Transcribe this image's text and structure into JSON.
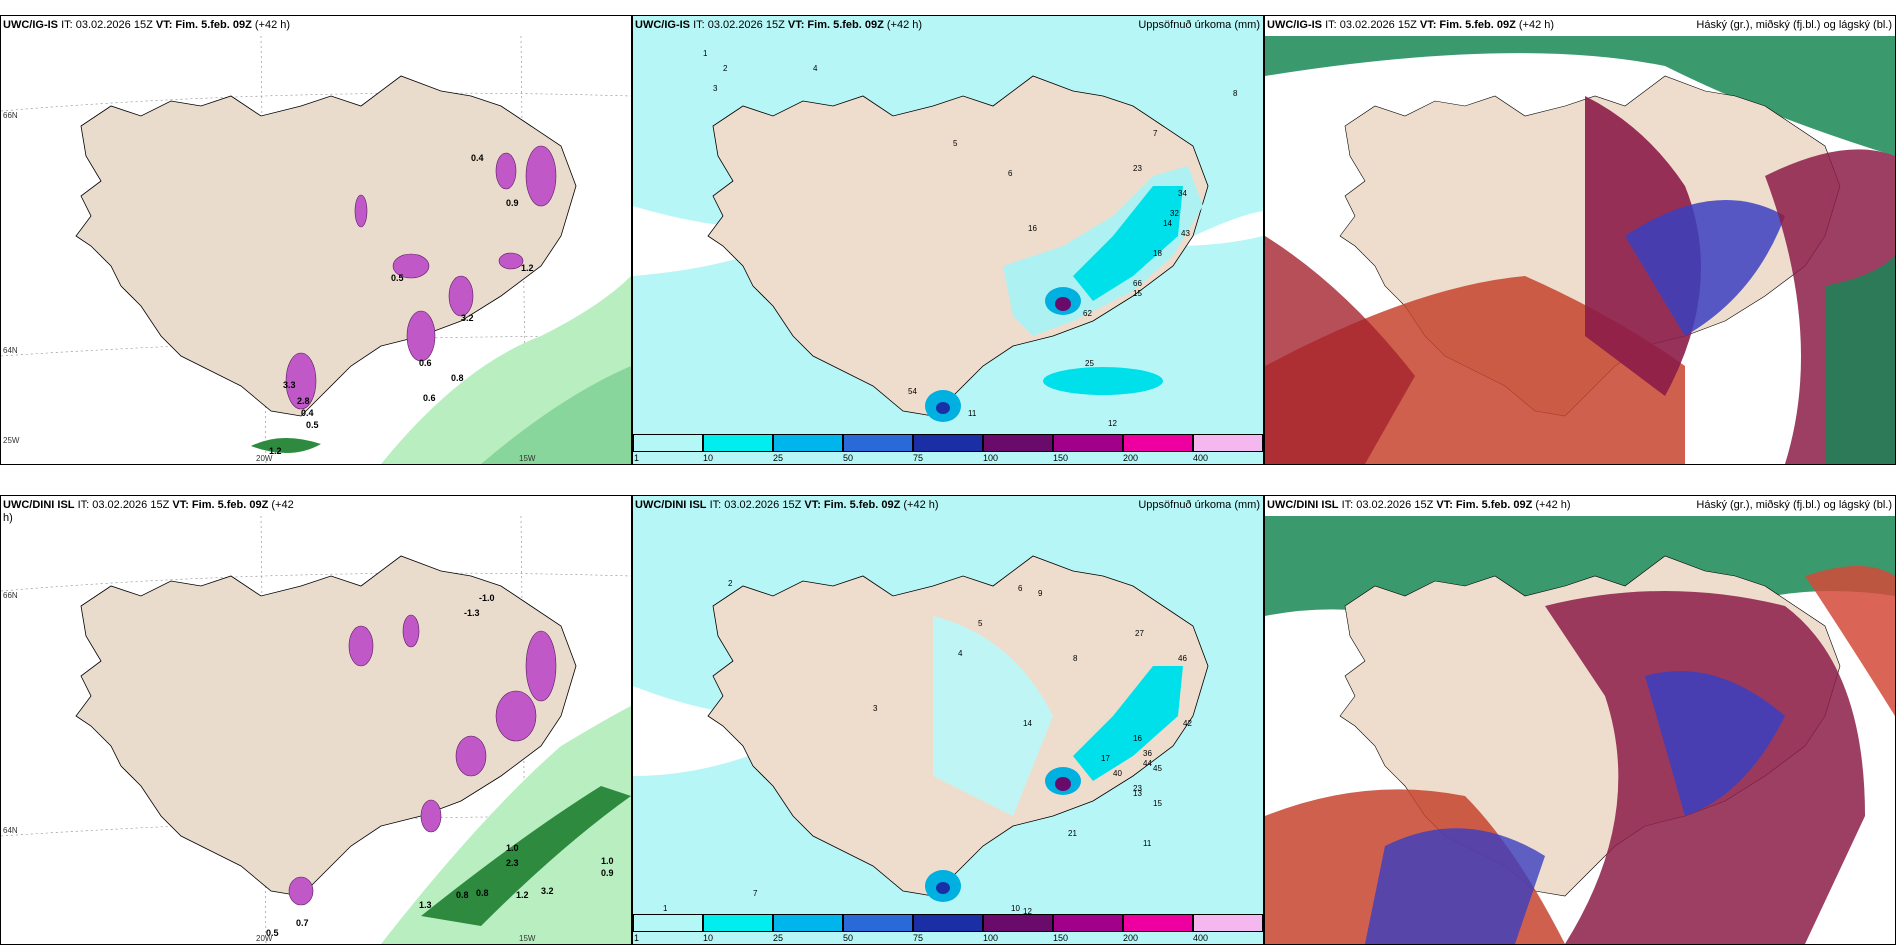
{
  "panels": {
    "p1": {
      "model": "UWC/IG-IS",
      "it": "IT: 03.02.2026 15Z",
      "vt_label": "VT: Fim. 5.feb. 09Z",
      "lead": "(+42 h)",
      "right": ""
    },
    "p2": {
      "model": "UWC/IG-IS",
      "it": "IT: 03.02.2026 15Z",
      "vt_label": "VT: Fim. 5.feb. 09Z",
      "lead": "(+42 h)",
      "right": "Uppsöfnuð úrkoma (mm)"
    },
    "p3": {
      "model": "UWC/IG-IS",
      "it": "IT: 03.02.2026 15Z",
      "vt_label": "VT: Fim. 5.feb. 09Z",
      "lead": "(+42 h)",
      "right": "Háský (gr.), miðský (fj.bl.) og lágský (bl.)"
    },
    "p4": {
      "model": "UWC/DINI ISL",
      "it": "IT: 03.02.2026 15Z",
      "vt_label": "VT: Fim. 5.feb. 09Z",
      "lead": "(+42",
      "right": "",
      "lead2": "h)"
    },
    "p5": {
      "model": "UWC/DINI ISL",
      "it": "IT: 03.02.2026 15Z",
      "vt_label": "VT: Fim. 5.feb. 09Z",
      "lead": "(+42 h)",
      "right": "Uppsöfnuð úrkoma (mm)"
    },
    "p6": {
      "model": "UWC/DINI ISL",
      "it": "IT: 03.02.2026 15Z",
      "vt_label": "VT: Fim. 5.feb. 09Z",
      "lead": "(+42 h)",
      "right": "Háský (gr.), miðský (fj.bl.) og lágský (bl.)"
    }
  },
  "coords": {
    "lat66": "66N",
    "lat64": "64N",
    "lat25": "25W",
    "lon20": "20W",
    "lon15": "15W",
    "lat66r": "66N",
    "lat64r": "64N"
  },
  "legend": {
    "ticks": [
      "1",
      "10",
      "25",
      "50",
      "75",
      "100",
      "150",
      "200",
      "400"
    ],
    "colors": [
      "#b3f7f7",
      "#00eeee",
      "#00b4ec",
      "#2a6ad8",
      "#1a2fa6",
      "#6a0a6a",
      "#a0008a",
      "#ee00a0",
      "#f4b8ee"
    ]
  },
  "colors": {
    "land": "#eeddcc",
    "sea": "#ffffff",
    "precip_light": "#bdf6f6",
    "precip_cyan": "#00e2ec",
    "cloud_high": "#2d8a5e",
    "cloud_mid": "#cc3a2e",
    "cloud_low": "#3a3ac0",
    "snow_purple": "#b54ec0",
    "green_shade": "#9ee8a8"
  },
  "labels": {
    "p1": [
      "0.6",
      "0.8",
      "0.6",
      "0.5",
      "0.4",
      "1.2",
      "2.8",
      "3.3",
      "0.5",
      "0.9",
      "3.2",
      "1.2",
      "0.4"
    ],
    "p2": [
      "1",
      "2",
      "3",
      "4",
      "5",
      "6",
      "7",
      "8",
      "11",
      "12",
      "14",
      "15",
      "16",
      "18",
      "23",
      "25",
      "32",
      "34",
      "43",
      "54",
      "62",
      "66"
    ],
    "p4": [
      "-1.0",
      "-1.3",
      "0.5",
      "0.8",
      "0.7",
      "1.0",
      "2.3",
      "3.2",
      "1.2",
      "0.9",
      "0.8",
      "1.3",
      "1.0"
    ],
    "p5": [
      "1",
      "2",
      "3",
      "4",
      "5",
      "6",
      "7",
      "8",
      "9",
      "10",
      "11",
      "12",
      "13",
      "14",
      "15",
      "16",
      "17",
      "21",
      "23",
      "27",
      "36",
      "40",
      "42",
      "44",
      "45",
      "46"
    ]
  },
  "icons": {
    "map": "iceland-map-icon"
  }
}
